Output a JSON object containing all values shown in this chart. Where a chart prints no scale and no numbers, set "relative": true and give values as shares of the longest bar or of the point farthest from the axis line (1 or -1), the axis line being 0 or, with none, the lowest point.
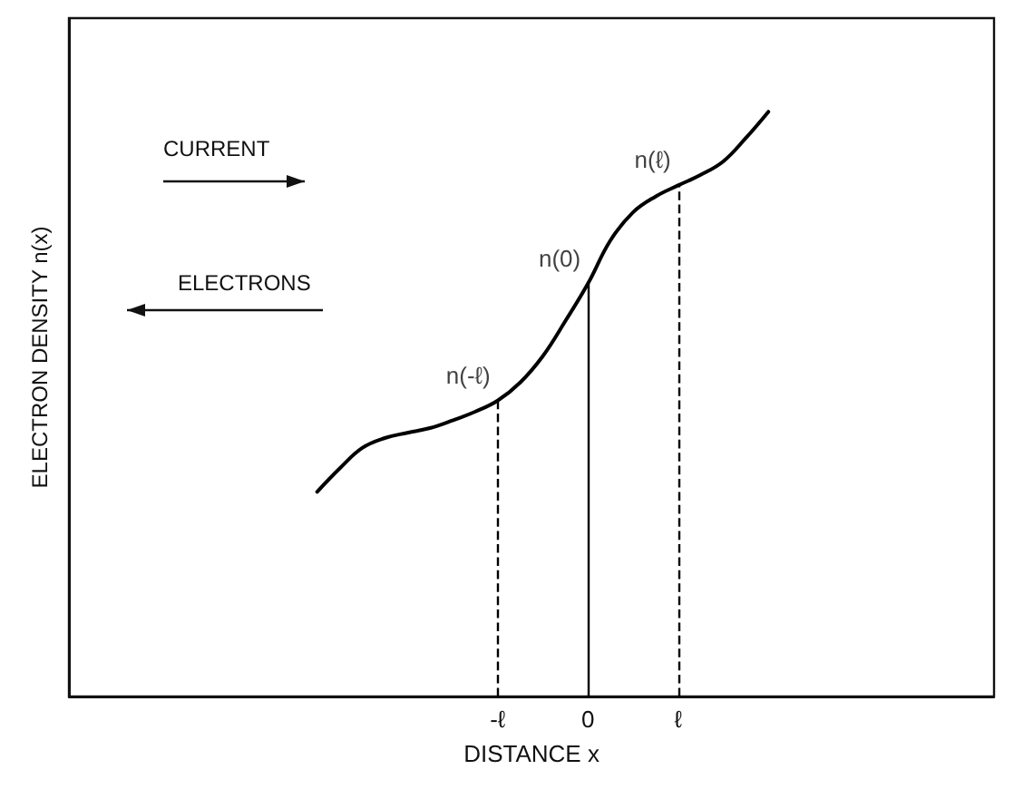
{
  "chart_data": {
    "type": "line",
    "relative": true,
    "xlabel": "DISTANCE x",
    "ylabel": "ELECTRON DENSITY n(x)",
    "categories": [
      null,
      null,
      null,
      null,
      null,
      null,
      null,
      null,
      null,
      null,
      null,
      null,
      null,
      null,
      null,
      null,
      null,
      null,
      null,
      "-ℓ",
      null,
      null,
      null,
      "0",
      null,
      null,
      null,
      "ℓ",
      null,
      null,
      null,
      null,
      null,
      null,
      null,
      null,
      null,
      null,
      null,
      null,
      null,
      null
    ],
    "series": [
      {
        "color": "#000000",
        "values": [
          null,
          null,
          null,
          null,
          null,
          null,
          null,
          null,
          null,
          null,
          null,
          0.35,
          0.39,
          0.425,
          0.442,
          0.451,
          0.459,
          0.472,
          0.487,
          0.506,
          0.537,
          0.582,
          0.642,
          0.706,
          0.78,
          0.828,
          0.855,
          0.874,
          0.892,
          0.915,
          0.955,
          1.0,
          null,
          null,
          null,
          null,
          null,
          null,
          null,
          null,
          null,
          null
        ]
      }
    ],
    "grid": false,
    "marker": "none",
    "line_style": "solid",
    "ref_lines": [
      {
        "axis": "x",
        "value": "-ℓ",
        "line_style": "dashed",
        "color": "#000000"
      },
      {
        "axis": "x",
        "value": "0",
        "line_style": "solid",
        "color": "#000000"
      },
      {
        "axis": "x",
        "value": "ℓ",
        "line_style": "dashed",
        "color": "#000000"
      }
    ],
    "annotations": [
      {
        "text": "n(-ℓ)",
        "x": "-ℓ",
        "y": 0.506
      },
      {
        "text": "n(0)",
        "x": "0",
        "y": 0.706
      },
      {
        "text": "n(ℓ)",
        "x": "ℓ",
        "y": 0.874
      },
      "CURRENT",
      "ELECTRONS"
    ]
  }
}
